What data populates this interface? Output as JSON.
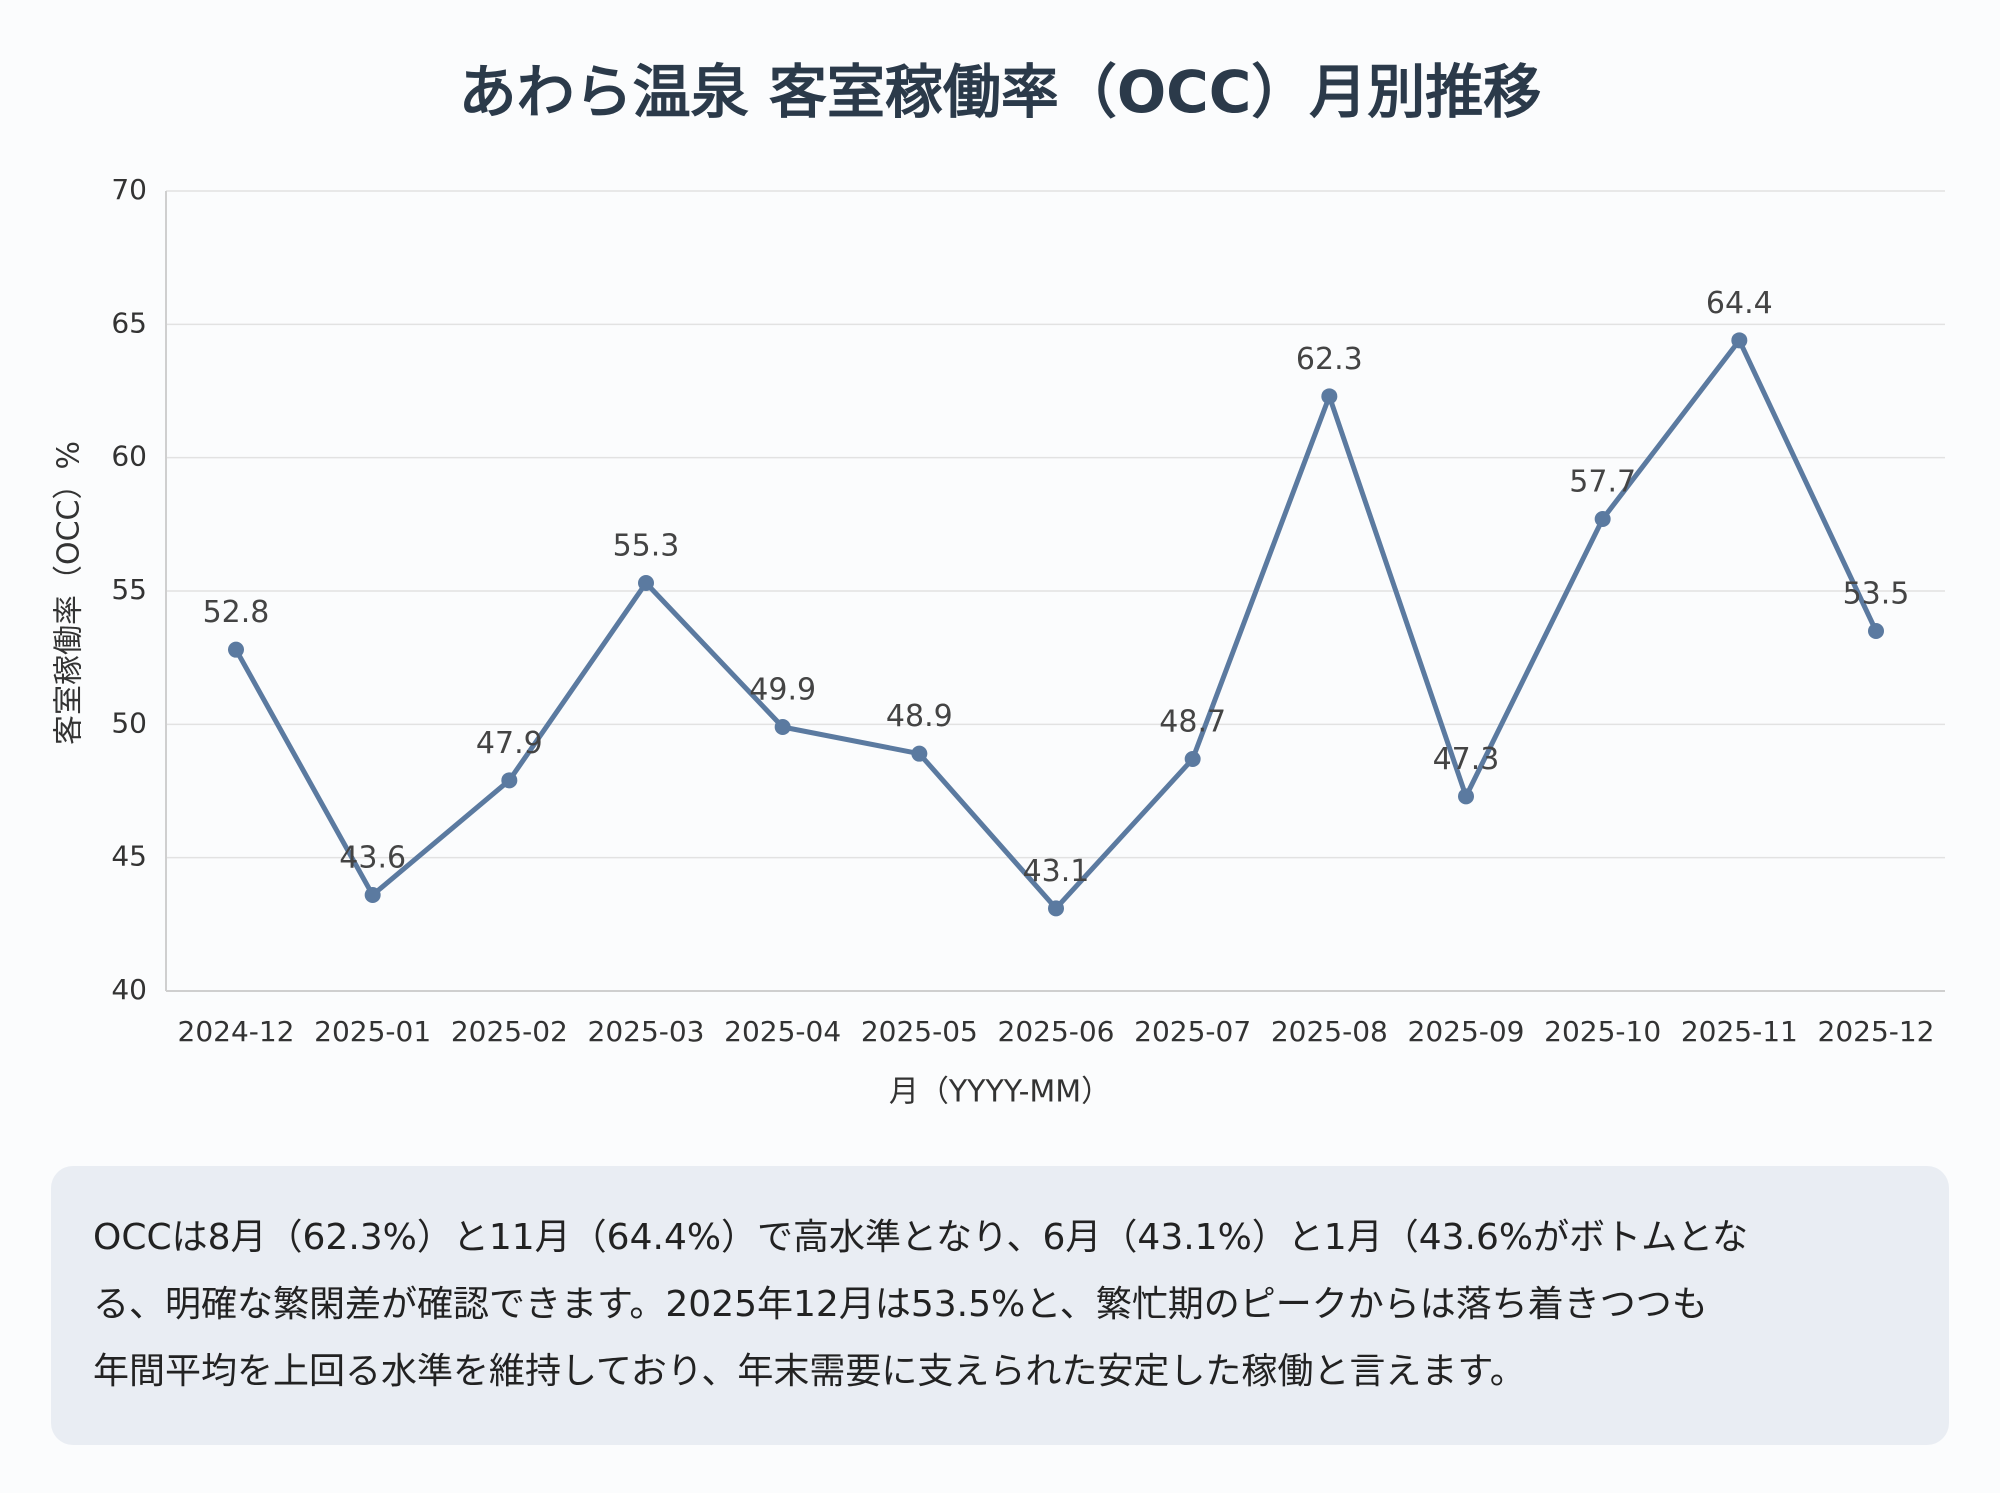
{
  "chart_data": {
    "type": "line",
    "title": "あわら温泉 客室稼働率（OCC）月別推移",
    "x_label": "月（YYYY-MM）",
    "y_label": "客室稼働率（OCC）%",
    "categories": [
      "2024-12",
      "2025-01",
      "2025-02",
      "2025-03",
      "2025-04",
      "2025-05",
      "2025-06",
      "2025-07",
      "2025-08",
      "2025-09",
      "2025-10",
      "2025-11",
      "2025-12"
    ],
    "series": [
      {
        "name": "OCC",
        "color": "#5b7aa0",
        "values": [
          52.8,
          43.6,
          47.9,
          55.3,
          49.9,
          48.9,
          43.1,
          48.7,
          62.3,
          47.3,
          57.7,
          64.4,
          53.5
        ]
      }
    ],
    "ylim": [
      40,
      70
    ],
    "yticks": [
      40,
      45,
      50,
      55,
      60,
      65,
      70
    ],
    "grid": true
  },
  "summary": {
    "lines": [
      "OCCは8月（62.3%）と11月（64.4%）で高水準となり、6月（43.1%）と1月（43.6%がボトムとな",
      "る、明確な繁閑差が確認できます。2025年12月は53.5%と、繁忙期のピークからは落ち着きつつも",
      "年間平均を上回る水準を維持しており、年末需要に支えられた安定した稼働と言えます。"
    ]
  }
}
